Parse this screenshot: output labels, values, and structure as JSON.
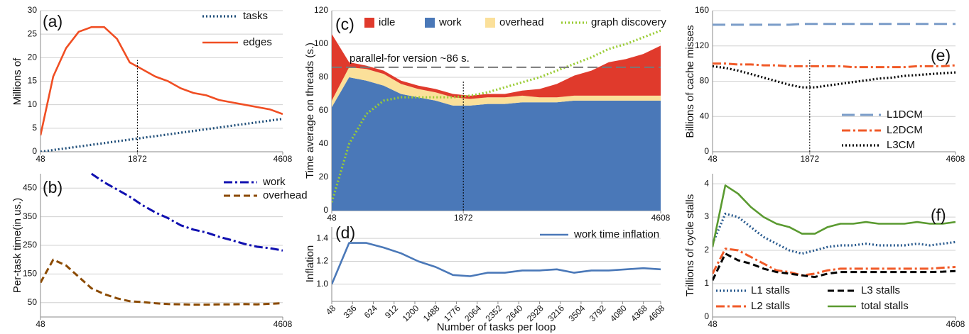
{
  "chart_data": [
    {
      "type": "line",
      "label": "(a)",
      "ylabel": "Millions of",
      "x": [
        48,
        288,
        528,
        768,
        1008,
        1248,
        1488,
        1728,
        1968,
        2208,
        2448,
        2688,
        2928,
        3168,
        3408,
        3648,
        3888,
        4128,
        4368,
        4608
      ],
      "series": [
        {
          "name": "tasks",
          "color": "#1f4e79",
          "style": "dotted",
          "values": [
            0,
            0.37,
            0.74,
            1.1,
            1.47,
            1.84,
            2.21,
            2.58,
            2.95,
            3.32,
            3.68,
            4.05,
            4.42,
            4.79,
            5.16,
            5.53,
            5.89,
            6.26,
            6.63,
            7
          ]
        },
        {
          "name": "edges",
          "color": "#f04e23",
          "style": "solid",
          "values": [
            3.5,
            16,
            22,
            25.5,
            26.5,
            26.5,
            24,
            19,
            17.5,
            16,
            15,
            13.5,
            12.5,
            12,
            11,
            10.5,
            10,
            9.5,
            9,
            8
          ]
        }
      ],
      "xlim": [
        48,
        4608
      ],
      "xticks": [
        48,
        1872,
        4608
      ],
      "ylim": [
        0,
        30
      ],
      "yticks": [
        0,
        5,
        10,
        15,
        20,
        25,
        30
      ],
      "grid": true,
      "vline": 1872
    },
    {
      "type": "line",
      "label": "(b)",
      "ylabel": "Per-task time(in us.)",
      "x": [
        48,
        288,
        528,
        768,
        1008,
        1248,
        1488,
        1728,
        1968,
        2208,
        2448,
        2688,
        2928,
        3168,
        3408,
        3648,
        3888,
        4128,
        4368,
        4608
      ],
      "series": [
        {
          "name": "work",
          "color": "#1010b0",
          "style": "dashdot",
          "values": [
            null,
            null,
            null,
            null,
            500,
            470,
            445,
            420,
            390,
            365,
            345,
            320,
            305,
            295,
            280,
            268,
            255,
            245,
            240,
            232
          ]
        },
        {
          "name": "overhead",
          "color": "#8b4a00",
          "style": "dashed",
          "values": [
            120,
            200,
            180,
            140,
            100,
            80,
            65,
            55,
            52,
            48,
            45,
            44,
            43,
            43,
            44,
            44,
            45,
            44,
            46,
            48
          ]
        }
      ],
      "xlim": [
        48,
        4608
      ],
      "xticks": [
        48,
        4608
      ],
      "ylim": [
        0,
        500
      ],
      "yticks": [
        50,
        150,
        250,
        350,
        450
      ],
      "grid": true
    },
    {
      "type": "stacked_area",
      "label": "(c)",
      "ylabel": "Time average on threads (s.)",
      "x": [
        48,
        288,
        528,
        768,
        1008,
        1248,
        1488,
        1728,
        1968,
        2208,
        2448,
        2688,
        2928,
        3168,
        3408,
        3648,
        3888,
        4128,
        4368,
        4608
      ],
      "series": [
        {
          "name": "idle",
          "color": "#e03a2c",
          "values": [
            40,
            3,
            2,
            2,
            2,
            2,
            2,
            2,
            2,
            2,
            2,
            3,
            5,
            8,
            12,
            15,
            20,
            22,
            25,
            30
          ]
        },
        {
          "name": "work",
          "color": "#4a78b8",
          "values": [
            62,
            80,
            78,
            75,
            70,
            68,
            66,
            63,
            63,
            64,
            64,
            65,
            65,
            65,
            66,
            66,
            66,
            66,
            66,
            66
          ]
        },
        {
          "name": "overhead",
          "color": "#fbe09a",
          "values": [
            4,
            6,
            7,
            7,
            6,
            5,
            5,
            5,
            4,
            4,
            4,
            4,
            3,
            3,
            3,
            3,
            3,
            3,
            3,
            3
          ]
        },
        {
          "name": "graph discovery",
          "color": "#99cc33",
          "style": "dotted",
          "type": "line",
          "values": [
            5,
            40,
            58,
            66,
            68,
            68,
            68,
            68,
            69,
            71,
            74,
            77,
            80,
            84,
            88,
            92,
            97,
            100,
            104,
            108
          ]
        }
      ],
      "stack_order": [
        1,
        2,
        0
      ],
      "hline": {
        "value": 86,
        "label": "parallel-for version ~86 s."
      },
      "xlim": [
        48,
        4608
      ],
      "xticks": [
        48,
        1872,
        4608
      ],
      "ylim": [
        0,
        120
      ],
      "yticks": [
        0,
        20,
        40,
        60,
        80,
        100,
        120
      ],
      "grid": true,
      "vline": 1872
    },
    {
      "type": "line",
      "label": "(d)",
      "ylabel": "Inflation",
      "xlabel": "Number of tasks per loop",
      "x": [
        48,
        288,
        528,
        768,
        1008,
        1248,
        1488,
        1728,
        1968,
        2208,
        2448,
        2688,
        2928,
        3168,
        3408,
        3648,
        3888,
        4128,
        4368,
        4608
      ],
      "series": [
        {
          "name": "work time inflation",
          "color": "#4a78b8",
          "style": "solid",
          "values": [
            1.0,
            1.36,
            1.36,
            1.32,
            1.27,
            1.2,
            1.15,
            1.08,
            1.07,
            1.1,
            1.1,
            1.12,
            1.12,
            1.13,
            1.1,
            1.12,
            1.12,
            1.13,
            1.14,
            1.13
          ]
        }
      ],
      "xlim": [
        48,
        4608
      ],
      "xticks": [
        48,
        336,
        624,
        912,
        1200,
        1488,
        1776,
        2064,
        2352,
        2640,
        2928,
        3216,
        3504,
        3792,
        4080,
        4368,
        4608
      ],
      "ylim": [
        0.85,
        1.5
      ],
      "yticks": [
        {
          "value": 1,
          "label": "1.0"
        },
        1.2,
        1.4
      ],
      "grid": true
    },
    {
      "type": "line",
      "label": "(e)",
      "ylabel": "Billions of cache misses",
      "x": [
        48,
        288,
        528,
        768,
        1008,
        1248,
        1488,
        1728,
        1968,
        2208,
        2448,
        2688,
        2928,
        3168,
        3408,
        3648,
        3888,
        4128,
        4368,
        4608
      ],
      "series": [
        {
          "name": "L1DCM",
          "color": "#7a9cc8",
          "style": "longdash",
          "values": [
            144,
            144,
            144,
            144,
            144,
            144,
            144,
            145,
            145,
            145,
            145,
            145,
            145,
            145,
            145,
            145,
            145,
            145,
            145,
            145
          ]
        },
        {
          "name": "L2DCM",
          "color": "#f05a28",
          "style": "dashdot",
          "values": [
            100,
            100,
            99,
            99,
            98,
            98,
            97,
            97,
            97,
            97,
            97,
            96,
            96,
            96,
            96,
            96,
            97,
            97,
            97,
            98
          ]
        },
        {
          "name": "L3CM",
          "color": "#000000",
          "style": "dotted",
          "values": [
            97,
            95,
            92,
            88,
            84,
            80,
            76,
            73,
            73,
            75,
            77,
            79,
            81,
            83,
            84,
            86,
            87,
            88,
            89,
            90
          ]
        }
      ],
      "xlim": [
        48,
        4608
      ],
      "xticks": [
        48,
        1872,
        4608
      ],
      "ylim": [
        0,
        160
      ],
      "yticks": [
        0,
        40,
        80,
        120,
        160
      ],
      "grid": true,
      "vline": 1872
    },
    {
      "type": "line",
      "label": "(f)",
      "ylabel": "Trillions of cycle stalls",
      "x": [
        48,
        288,
        528,
        768,
        1008,
        1248,
        1488,
        1728,
        1968,
        2208,
        2448,
        2688,
        2928,
        3168,
        3408,
        3648,
        3888,
        4128,
        4368,
        4608
      ],
      "series": [
        {
          "name": "L1 stalls",
          "color": "#2a5b8f",
          "style": "dotted",
          "values": [
            2.2,
            3.1,
            3.0,
            2.7,
            2.4,
            2.2,
            2.0,
            1.9,
            2.0,
            2.1,
            2.15,
            2.15,
            2.2,
            2.15,
            2.15,
            2.15,
            2.2,
            2.15,
            2.2,
            2.25
          ]
        },
        {
          "name": "L2 stalls",
          "color": "#f05a28",
          "style": "dashdot",
          "values": [
            1.3,
            2.05,
            2.0,
            1.8,
            1.6,
            1.4,
            1.35,
            1.25,
            1.3,
            1.4,
            1.45,
            1.45,
            1.45,
            1.45,
            1.45,
            1.45,
            1.45,
            1.45,
            1.48,
            1.5
          ]
        },
        {
          "name": "L3 stalls",
          "color": "#000000",
          "style": "dashed",
          "values": [
            1.1,
            1.9,
            1.7,
            1.6,
            1.45,
            1.35,
            1.3,
            1.25,
            1.2,
            1.3,
            1.35,
            1.35,
            1.35,
            1.35,
            1.35,
            1.35,
            1.35,
            1.35,
            1.36,
            1.38
          ]
        },
        {
          "name": "total stalls",
          "color": "#5a9a30",
          "style": "solid",
          "values": [
            2.1,
            3.95,
            3.7,
            3.3,
            3.0,
            2.8,
            2.7,
            2.5,
            2.5,
            2.7,
            2.8,
            2.8,
            2.85,
            2.8,
            2.8,
            2.8,
            2.85,
            2.8,
            2.8,
            2.85
          ]
        }
      ],
      "xlim": [
        48,
        4608
      ],
      "xticks": [
        48,
        4608
      ],
      "ylim": [
        0,
        4.3
      ],
      "yticks": [
        0,
        1,
        2,
        3,
        4
      ],
      "grid": true
    }
  ]
}
